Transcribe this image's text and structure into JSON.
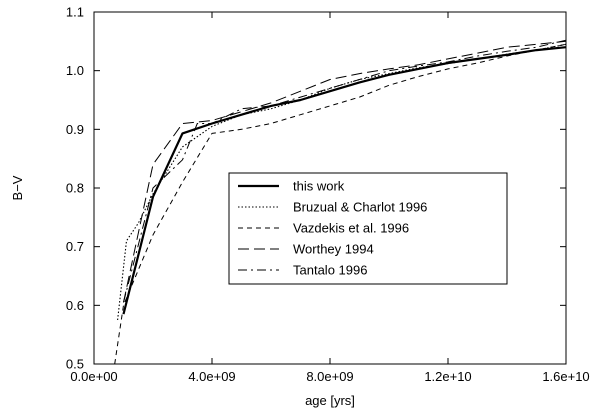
{
  "chart_data": {
    "type": "line",
    "xlabel": "age [yrs]",
    "ylabel": "B−V",
    "xlim": [
      0,
      16000000000
    ],
    "ylim": [
      0.5,
      1.1
    ],
    "grid": false,
    "legend_placement": "center-right",
    "x_ticks": [
      0,
      4000000000,
      8000000000,
      12000000000,
      16000000000
    ],
    "x_tick_labels": [
      "0.0e+00",
      "4.0e+09",
      "8.0e+09",
      "1.2e+10",
      "1.6e+10"
    ],
    "y_ticks": [
      0.5,
      0.6,
      0.7,
      0.8,
      0.9,
      1.0,
      1.1
    ],
    "y_tick_labels": [
      "0.5",
      "0.6",
      "0.7",
      "0.8",
      "0.9",
      "1.0",
      "1.1"
    ],
    "series": [
      {
        "name": "this work",
        "style": "solid-thick",
        "points": [
          [
            1000000000,
            0.585
          ],
          [
            2000000000,
            0.785
          ],
          [
            3000000000,
            0.893
          ],
          [
            4000000000,
            0.91
          ],
          [
            5000000000,
            0.925
          ],
          [
            6000000000,
            0.94
          ],
          [
            7000000000,
            0.95
          ],
          [
            8000000000,
            0.965
          ],
          [
            9000000000,
            0.98
          ],
          [
            10000000000,
            0.993
          ],
          [
            11000000000,
            1.003
          ],
          [
            12000000000,
            1.013
          ],
          [
            13000000000,
            1.02
          ],
          [
            14000000000,
            1.027
          ],
          [
            15000000000,
            1.035
          ],
          [
            16000000000,
            1.04
          ]
        ]
      },
      {
        "name": "Bruzual & Charlot 1996",
        "style": "dotted",
        "points": [
          [
            800000000,
            0.575
          ],
          [
            1100000000,
            0.71
          ],
          [
            1500000000,
            0.74
          ],
          [
            2000000000,
            0.79
          ],
          [
            3000000000,
            0.87
          ],
          [
            4000000000,
            0.905
          ],
          [
            5000000000,
            0.925
          ],
          [
            6000000000,
            0.935
          ],
          [
            7000000000,
            0.95
          ],
          [
            8000000000,
            0.97
          ],
          [
            9000000000,
            0.985
          ],
          [
            10000000000,
            0.995
          ],
          [
            11000000000,
            1.005
          ],
          [
            12000000000,
            1.012
          ],
          [
            13000000000,
            1.02
          ],
          [
            14000000000,
            1.028
          ],
          [
            15000000000,
            1.035
          ],
          [
            16000000000,
            1.045
          ]
        ]
      },
      {
        "name": "Vazdekis et al. 1996",
        "style": "dashed",
        "points": [
          [
            700000000,
            0.5
          ],
          [
            1000000000,
            0.6
          ],
          [
            2000000000,
            0.72
          ],
          [
            3000000000,
            0.81
          ],
          [
            4000000000,
            0.893
          ],
          [
            5000000000,
            0.9
          ],
          [
            6000000000,
            0.91
          ],
          [
            7000000000,
            0.925
          ],
          [
            8000000000,
            0.94
          ],
          [
            9000000000,
            0.955
          ],
          [
            10000000000,
            0.975
          ],
          [
            11000000000,
            0.99
          ],
          [
            12000000000,
            1.003
          ],
          [
            13000000000,
            1.013
          ],
          [
            14000000000,
            1.025
          ],
          [
            15000000000,
            1.035
          ],
          [
            16000000000,
            1.045
          ]
        ]
      },
      {
        "name": "Worthey 1994",
        "style": "long-dashed",
        "points": [
          [
            1000000000,
            0.605
          ],
          [
            2000000000,
            0.84
          ],
          [
            3000000000,
            0.91
          ],
          [
            4000000000,
            0.915
          ],
          [
            5000000000,
            0.93
          ],
          [
            6000000000,
            0.945
          ],
          [
            7000000000,
            0.965
          ],
          [
            8000000000,
            0.985
          ],
          [
            9000000000,
            0.995
          ],
          [
            10000000000,
            1.003
          ],
          [
            11000000000,
            1.01
          ],
          [
            12000000000,
            1.02
          ],
          [
            13000000000,
            1.03
          ],
          [
            14000000000,
            1.04
          ],
          [
            15000000000,
            1.045
          ],
          [
            16000000000,
            1.05
          ]
        ]
      },
      {
        "name": "Tantalo 1996",
        "style": "dash-dot",
        "points": [
          [
            1000000000,
            0.605
          ],
          [
            2000000000,
            0.8
          ],
          [
            3000000000,
            0.848
          ],
          [
            3500000000,
            0.91
          ],
          [
            4000000000,
            0.91
          ],
          [
            5000000000,
            0.935
          ],
          [
            6000000000,
            0.94
          ],
          [
            7000000000,
            0.955
          ],
          [
            8000000000,
            0.97
          ],
          [
            9000000000,
            0.985
          ],
          [
            10000000000,
            1.0
          ],
          [
            11000000000,
            1.008
          ],
          [
            12000000000,
            1.015
          ],
          [
            13000000000,
            1.025
          ],
          [
            14000000000,
            1.033
          ],
          [
            15000000000,
            1.04
          ],
          [
            16000000000,
            1.052
          ]
        ]
      }
    ]
  }
}
